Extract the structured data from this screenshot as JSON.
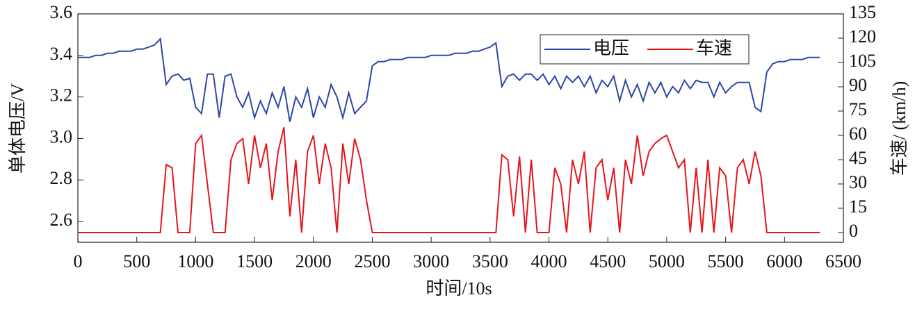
{
  "chart_data": {
    "type": "line",
    "x_label": "时间/10s",
    "y_label": "单体电压/V",
    "y2_label": "车速/ (km/h)",
    "x": [
      0,
      50,
      100,
      150,
      200,
      250,
      300,
      350,
      400,
      450,
      500,
      550,
      600,
      650,
      700,
      750,
      800,
      850,
      900,
      950,
      1000,
      1050,
      1100,
      1150,
      1200,
      1250,
      1300,
      1350,
      1400,
      1450,
      1500,
      1550,
      1600,
      1650,
      1700,
      1750,
      1800,
      1850,
      1900,
      1950,
      2000,
      2050,
      2100,
      2150,
      2200,
      2250,
      2300,
      2350,
      2400,
      2450,
      2500,
      2550,
      2600,
      2650,
      2700,
      2750,
      2800,
      2850,
      2900,
      2950,
      3000,
      3050,
      3100,
      3150,
      3200,
      3250,
      3300,
      3350,
      3400,
      3450,
      3500,
      3550,
      3600,
      3650,
      3700,
      3750,
      3800,
      3850,
      3900,
      3950,
      4000,
      4050,
      4100,
      4150,
      4200,
      4250,
      4300,
      4350,
      4400,
      4450,
      4500,
      4550,
      4600,
      4650,
      4700,
      4750,
      4800,
      4850,
      4900,
      4950,
      5000,
      5050,
      5100,
      5150,
      5200,
      5250,
      5300,
      5350,
      5400,
      5450,
      5500,
      5550,
      5600,
      5650,
      5700,
      5750,
      5800,
      5850,
      5900,
      5950,
      6000,
      6050,
      6100,
      6150,
      6200,
      6250,
      6300
    ],
    "series": [
      {
        "name": "电压",
        "color": "#2d46a8",
        "values": [
          3.39,
          3.39,
          3.39,
          3.4,
          3.4,
          3.41,
          3.41,
          3.42,
          3.42,
          3.42,
          3.43,
          3.43,
          3.44,
          3.45,
          3.48,
          3.26,
          3.3,
          3.31,
          3.28,
          3.29,
          3.15,
          3.12,
          3.31,
          3.31,
          3.1,
          3.3,
          3.31,
          3.2,
          3.15,
          3.22,
          3.1,
          3.18,
          3.12,
          3.22,
          3.15,
          3.25,
          3.08,
          3.2,
          3.15,
          3.24,
          3.1,
          3.2,
          3.15,
          3.26,
          3.2,
          3.1,
          3.22,
          3.12,
          3.15,
          3.18,
          3.35,
          3.37,
          3.37,
          3.38,
          3.38,
          3.38,
          3.39,
          3.39,
          3.39,
          3.39,
          3.4,
          3.4,
          3.4,
          3.4,
          3.41,
          3.41,
          3.41,
          3.42,
          3.42,
          3.43,
          3.44,
          3.46,
          3.25,
          3.3,
          3.31,
          3.28,
          3.31,
          3.31,
          3.28,
          3.31,
          3.26,
          3.3,
          3.24,
          3.3,
          3.27,
          3.3,
          3.25,
          3.3,
          3.22,
          3.28,
          3.25,
          3.3,
          3.18,
          3.28,
          3.2,
          3.26,
          3.18,
          3.27,
          3.22,
          3.27,
          3.2,
          3.25,
          3.22,
          3.28,
          3.24,
          3.28,
          3.27,
          3.27,
          3.2,
          3.27,
          3.22,
          3.25,
          3.27,
          3.27,
          3.27,
          3.15,
          3.13,
          3.32,
          3.36,
          3.37,
          3.37,
          3.38,
          3.38,
          3.38,
          3.39,
          3.39,
          3.39
        ]
      },
      {
        "name": "车速",
        "color": "#e8141c",
        "axis": "y2",
        "values": [
          0,
          0,
          0,
          0,
          0,
          0,
          0,
          0,
          0,
          0,
          0,
          0,
          0,
          0,
          0,
          42,
          40,
          0,
          0,
          0,
          55,
          60,
          30,
          0,
          0,
          0,
          45,
          55,
          58,
          30,
          60,
          40,
          55,
          20,
          50,
          65,
          10,
          45,
          0,
          50,
          60,
          30,
          55,
          40,
          0,
          55,
          30,
          58,
          45,
          20,
          0,
          0,
          0,
          0,
          0,
          0,
          0,
          0,
          0,
          0,
          0,
          0,
          0,
          0,
          0,
          0,
          0,
          0,
          0,
          0,
          0,
          0,
          48,
          45,
          10,
          47,
          0,
          45,
          0,
          0,
          0,
          40,
          30,
          0,
          45,
          30,
          50,
          0,
          40,
          45,
          20,
          40,
          0,
          45,
          30,
          60,
          35,
          50,
          55,
          58,
          60,
          50,
          40,
          45,
          0,
          40,
          0,
          45,
          0,
          40,
          35,
          0,
          40,
          45,
          30,
          50,
          35,
          0,
          0,
          0,
          0,
          0,
          0,
          0,
          0,
          0,
          0
        ]
      }
    ],
    "xlim": [
      0,
      6500
    ],
    "xticks": [
      0,
      500,
      1000,
      1500,
      2000,
      2500,
      3000,
      3500,
      4000,
      4500,
      5000,
      5500,
      6000,
      6500
    ],
    "ylim": [
      2.5,
      3.6
    ],
    "yticks": [
      2.6,
      2.8,
      {
        "value": 3,
        "label": "3.0"
      },
      3.2,
      3.4,
      3.6
    ],
    "y2lim": [
      -6,
      135
    ],
    "y2ticks": [
      0,
      15,
      30,
      45,
      60,
      75,
      90,
      105,
      120,
      135
    ],
    "legend": "upper right"
  }
}
